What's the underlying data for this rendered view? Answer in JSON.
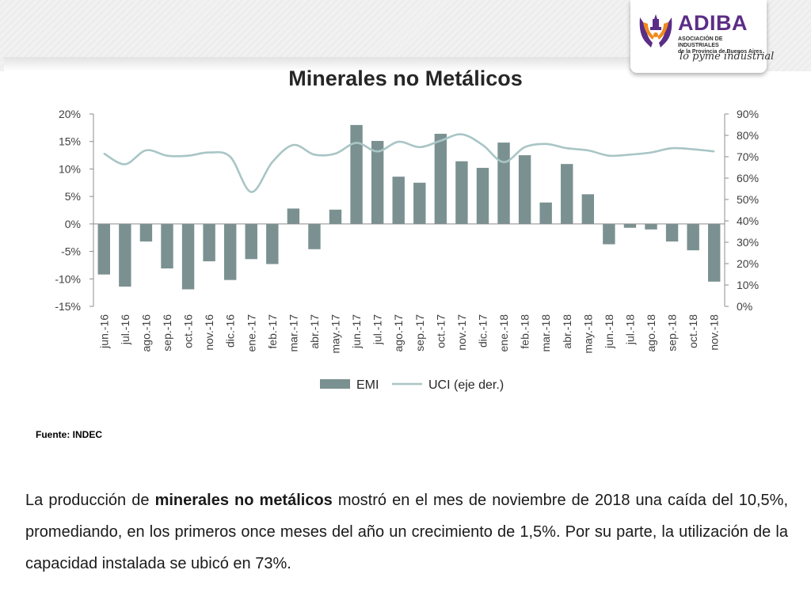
{
  "logo": {
    "brand": "ADIBA",
    "subtitle_line1": "ASOCIACIÓN DE INDUSTRIALES",
    "subtitle_line2": "de la Provincia de Buenos Aires",
    "slogan": "lo pyme industrial"
  },
  "chart_data": {
    "type": "bar",
    "title": "Minerales no Metálicos",
    "categories": [
      "jun.-16",
      "jul.-16",
      "ago.-16",
      "sep.-16",
      "oct.-16",
      "nov.-16",
      "dic.-16",
      "ene.-17",
      "feb.-17",
      "mar.-17",
      "abr.-17",
      "may.-17",
      "jun.-17",
      "jul.-17",
      "ago.-17",
      "sep.-17",
      "oct.-17",
      "nov.-17",
      "dic.-17",
      "ene.-18",
      "feb.-18",
      "mar.-18",
      "abr.-18",
      "may.-18",
      "jun.-18",
      "jul.-18",
      "ago.-18",
      "sep.-18",
      "oct.-18",
      "nov.-18"
    ],
    "series": [
      {
        "name": "EMI",
        "type": "bar",
        "axis": "left",
        "color": "#7b9191",
        "values": [
          -9.2,
          -11.4,
          -3.2,
          -8.1,
          -11.9,
          -6.8,
          -10.2,
          -6.4,
          -7.3,
          2.8,
          -4.6,
          2.6,
          18.0,
          15.1,
          8.6,
          7.5,
          16.4,
          11.4,
          10.2,
          14.8,
          12.5,
          3.9,
          10.9,
          5.4,
          -3.7,
          -0.7,
          -1.0,
          -3.2,
          -4.8,
          -10.5
        ]
      },
      {
        "name": "UCI (eje der.)",
        "type": "line",
        "axis": "right",
        "color": "#a9c5c5",
        "values": [
          71.5,
          66.5,
          73.0,
          70.5,
          70.5,
          72.0,
          70.0,
          53.5,
          67.5,
          75.5,
          71.0,
          71.5,
          76.5,
          72.5,
          77.0,
          74.5,
          77.5,
          80.5,
          75.5,
          67.5,
          74.5,
          76.0,
          74.0,
          73.0,
          70.5,
          71.0,
          72.0,
          74.0,
          73.5,
          72.5
        ]
      }
    ],
    "y_left": {
      "min": -15,
      "max": 20,
      "step": 5,
      "ticks": [
        "-15%",
        "-10%",
        "-5%",
        "0%",
        "5%",
        "10%",
        "15%",
        "20%"
      ]
    },
    "y_right": {
      "min": 0,
      "max": 90,
      "step": 10,
      "ticks": [
        "0%",
        "10%",
        "20%",
        "30%",
        "40%",
        "50%",
        "60%",
        "70%",
        "80%",
        "90%"
      ]
    },
    "legend": {
      "position": "bottom",
      "items": [
        "EMI",
        "UCI (eje der.)"
      ]
    },
    "grid": false
  },
  "source": "Fuente: INDEC",
  "paragraph": {
    "part1": "La producción de ",
    "bold": "minerales no metálicos",
    "part2": " mostró en el mes de noviembre de 2018 una caída del 10,5%, promediando, en los primeros once meses del año un crecimiento de 1,5%. Por su parte, la utilización de la capacidad instalada se ubicó en 73%."
  }
}
